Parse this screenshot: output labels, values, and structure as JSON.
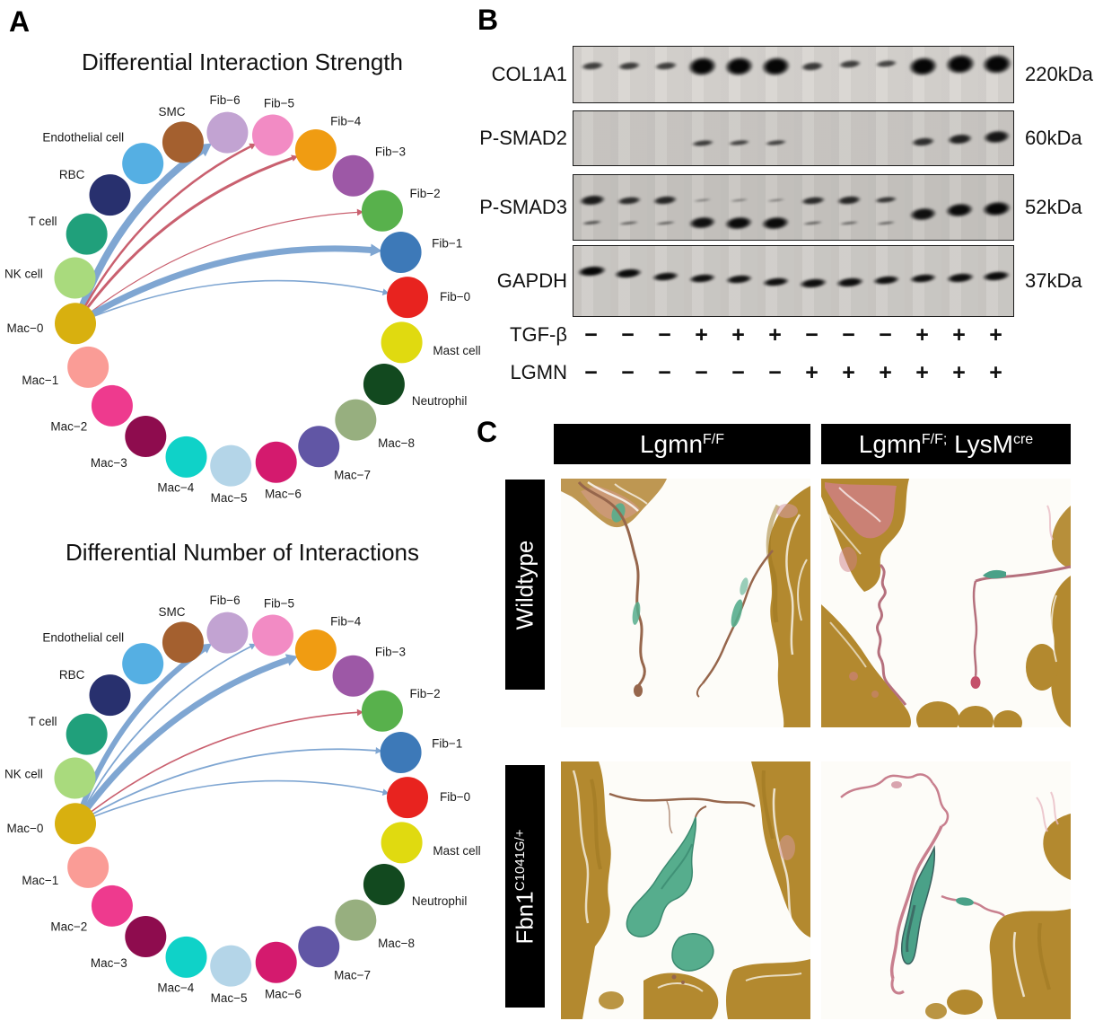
{
  "panelA": {
    "label": "A",
    "network": {
      "hub": "Mac−0",
      "edge_colors": {
        "decreased": "#7fa6d2",
        "increased": "#c9606f"
      },
      "nodes": [
        {
          "name": "Fib−6",
          "color": "#c2a3d2"
        },
        {
          "name": "Fib−5",
          "color": "#f28bc4"
        },
        {
          "name": "Fib−4",
          "color": "#f09c12"
        },
        {
          "name": "Fib−3",
          "color": "#9d58a6"
        },
        {
          "name": "Fib−2",
          "color": "#58b14c"
        },
        {
          "name": "Fib−1",
          "color": "#3d79b8"
        },
        {
          "name": "Fib−0",
          "color": "#e8231f"
        },
        {
          "name": "Mast cell",
          "color": "#e0da10"
        },
        {
          "name": "Neutrophil",
          "color": "#12491f"
        },
        {
          "name": "Mac−8",
          "color": "#97af7f"
        },
        {
          "name": "Mac−7",
          "color": "#6156a5"
        },
        {
          "name": "Mac−6",
          "color": "#d41a6e"
        },
        {
          "name": "Mac−5",
          "color": "#b4d5e8"
        },
        {
          "name": "Mac−4",
          "color": "#0fd2c8"
        },
        {
          "name": "Mac−3",
          "color": "#8e0c4e"
        },
        {
          "name": "Mac−2",
          "color": "#ee3a8e"
        },
        {
          "name": "Mac−1",
          "color": "#fa9c96"
        },
        {
          "name": "Mac−0",
          "color": "#d8b00f"
        },
        {
          "name": "NK cell",
          "color": "#a9da7d"
        },
        {
          "name": "T cell",
          "color": "#20a07b"
        },
        {
          "name": "RBC",
          "color": "#28306e"
        },
        {
          "name": "Endothelial cell",
          "color": "#55afe3"
        },
        {
          "name": "SMC",
          "color": "#a4602f"
        }
      ],
      "charts": [
        {
          "title": "Differential Interaction Strength",
          "edges": [
            {
              "from": "Mac−0",
              "to": "Fib−6",
              "color": "decreased",
              "width": 8
            },
            {
              "from": "Mac−0",
              "to": "Fib−5",
              "color": "increased",
              "width": 2.5
            },
            {
              "from": "Mac−0",
              "to": "Fib−4",
              "color": "increased",
              "width": 3
            },
            {
              "from": "Mac−0",
              "to": "Fib−2",
              "color": "increased",
              "width": 1.2
            },
            {
              "from": "Mac−0",
              "to": "Fib−1",
              "color": "decreased",
              "width": 7
            },
            {
              "from": "Mac−0",
              "to": "Fib−0",
              "color": "decreased",
              "width": 1.6
            }
          ]
        },
        {
          "title": "Differential Number of Interactions",
          "edges": [
            {
              "from": "Mac−0",
              "to": "Fib−6",
              "color": "decreased",
              "width": 6
            },
            {
              "from": "Mac−0",
              "to": "Fib−5",
              "color": "decreased",
              "width": 1.8
            },
            {
              "from": "Mac−0",
              "to": "Fib−4",
              "color": "decreased",
              "width": 7
            },
            {
              "from": "Mac−0",
              "to": "Fib−2",
              "color": "increased",
              "width": 1.6
            },
            {
              "from": "Mac−0",
              "to": "Fib−1",
              "color": "decreased",
              "width": 1.8
            },
            {
              "from": "Mac−0",
              "to": "Fib−0",
              "color": "decreased",
              "width": 1.6
            }
          ]
        }
      ]
    }
  },
  "panelB": {
    "label": "B",
    "lanes": 12,
    "blots": [
      {
        "protein": "COL1A1",
        "kda": "220kDa",
        "bg": "#d8d5d1",
        "rows": [
          {
            "y": 34,
            "h": 22,
            "lanes": [
              0.5,
              0.52,
              0.5,
              1,
              1,
              1,
              0.55,
              0.5,
              0.45,
              1,
              1.05,
              1.05
            ],
            "yoff": [
              0,
              0,
              0,
              0,
              0,
              0,
              0,
              -2,
              -3,
              0,
              -2,
              -2
            ]
          }
        ]
      },
      {
        "protein": "P-SMAD2",
        "kda": "60kDa",
        "bg": "#ccc9c5",
        "rows": [
          {
            "y": 57,
            "h": 18,
            "lanes": [
              0,
              0,
              0,
              0.5,
              0.45,
              0.45,
              0,
              0,
              0,
              0.62,
              0.75,
              0.85
            ],
            "yoff": [
              0,
              0,
              0,
              0,
              0,
              0,
              0,
              0,
              0,
              -2,
              -4,
              -7
            ]
          }
        ]
      },
      {
        "protein": "P-SMAD3",
        "kda": "52kDa",
        "bg": "#c8c5c1",
        "rows": [
          {
            "y": 38,
            "h": 16,
            "lanes": [
              0.8,
              0.65,
              0.7,
              0.18,
              0.2,
              0.2,
              0.65,
              0.7,
              0.55,
              0,
              0,
              0
            ]
          },
          {
            "y": 72,
            "h": 16,
            "lanes": [
              0.35,
              0.3,
              0.3,
              0.9,
              0.95,
              0.95,
              0.3,
              0.25,
              0.25,
              0,
              0,
              0
            ]
          },
          {
            "y": 56,
            "h": 17,
            "lanes": [
              0,
              0,
              0,
              0,
              0,
              0,
              0,
              0,
              0,
              0.9,
              0.95,
              1
            ],
            "yoff": [
              0,
              0,
              0,
              0,
              0,
              0,
              0,
              0,
              0,
              2,
              -2,
              -4
            ]
          }
        ]
      },
      {
        "protein": "GAPDH",
        "kda": "37kDa",
        "bg": "#cfccc8",
        "rows": [
          {
            "y": 45,
            "h": 12,
            "lanes": [
              1,
              0.95,
              0.9,
              0.9,
              0.88,
              0.9,
              0.92,
              0.92,
              0.9,
              0.9,
              0.92,
              0.95
            ],
            "yoff": [
              -8,
              -5,
              -2,
              0,
              1,
              4,
              5,
              4,
              2,
              0,
              -1,
              -2
            ]
          }
        ]
      }
    ],
    "conditions": [
      {
        "name": "TGF-β",
        "values": [
          "−",
          "−",
          "−",
          "+",
          "+",
          "+",
          "−",
          "−",
          "−",
          "+",
          "+",
          "+"
        ]
      },
      {
        "name": "LGMN",
        "values": [
          "−",
          "−",
          "−",
          "−",
          "−",
          "−",
          "+",
          "+",
          "+",
          "+",
          "+",
          "+"
        ]
      }
    ]
  },
  "panelC": {
    "label": "C",
    "columns": [
      {
        "base": "Lgmn",
        "sup": "F/F",
        "base2": "",
        "sup2": ""
      },
      {
        "base": "Lgmn",
        "sup": "F/F;",
        "base2": "LysM",
        "sup2": "cre"
      }
    ],
    "rows": [
      {
        "base": "Wildtype",
        "sup": ""
      },
      {
        "base": "Fbn1",
        "sup": "C1041G/+"
      }
    ],
    "stain_colors": {
      "muscle": "#b3892f",
      "collagen_pink": "#cf7f87",
      "proteoglycan_green": "#56ad8d"
    }
  }
}
